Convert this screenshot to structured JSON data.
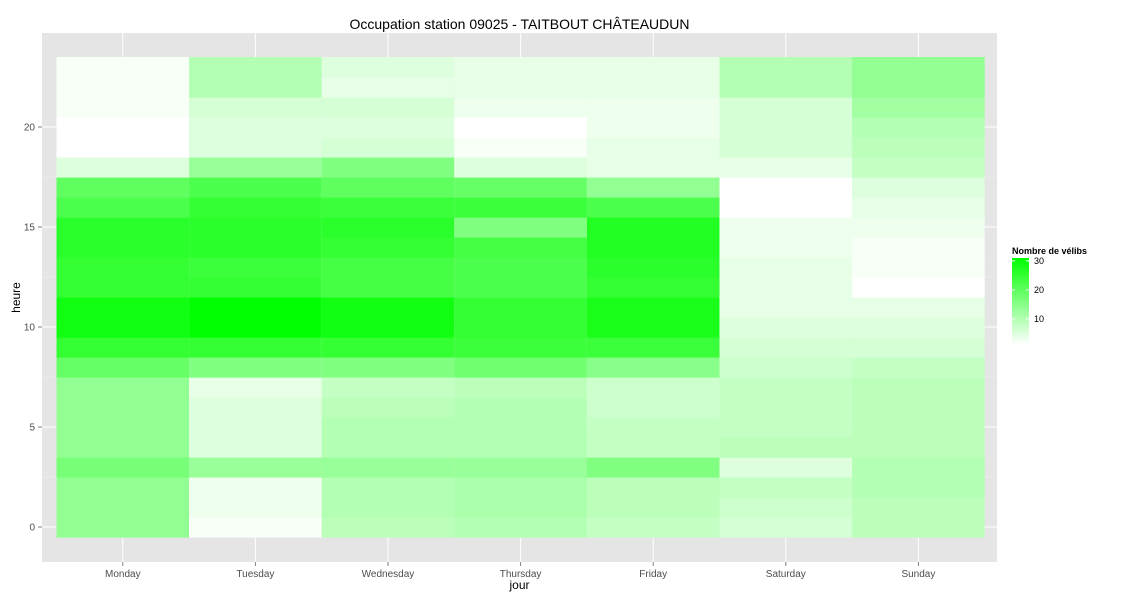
{
  "chart_data": {
    "type": "heatmap",
    "title": "Occupation station 09025 - TAITBOUT CHÂTEAUDUN",
    "xlabel": "jour",
    "ylabel": "heure",
    "categories": [
      "Monday",
      "Tuesday",
      "Wednesday",
      "Thursday",
      "Friday",
      "Saturday",
      "Sunday"
    ],
    "hours": [
      0,
      1,
      2,
      3,
      4,
      5,
      6,
      7,
      8,
      9,
      10,
      11,
      12,
      13,
      14,
      15,
      16,
      17,
      18,
      19,
      20,
      21,
      22,
      23
    ],
    "ylim": [
      -0.5,
      23.5
    ],
    "yticks": [
      0,
      5,
      10,
      15,
      20
    ],
    "values": [
      [
        14,
        2,
        9,
        10,
        8,
        6,
        9
      ],
      [
        14,
        3,
        10,
        11,
        9,
        7,
        9
      ],
      [
        14,
        3,
        10,
        11,
        9,
        8,
        10
      ],
      [
        17,
        13,
        13,
        13,
        16,
        5,
        10
      ],
      [
        14,
        5,
        10,
        10,
        8,
        9,
        9
      ],
      [
        14,
        5,
        10,
        10,
        8,
        8,
        9
      ],
      [
        14,
        5,
        9,
        10,
        7,
        8,
        9
      ],
      [
        14,
        4,
        8,
        9,
        7,
        8,
        9
      ],
      [
        19,
        16,
        16,
        18,
        15,
        7,
        8
      ],
      [
        25,
        25,
        25,
        24,
        24,
        6,
        6
      ],
      [
        29,
        31,
        29,
        25,
        28,
        5,
        5
      ],
      [
        29,
        31,
        29,
        25,
        28,
        4,
        4
      ],
      [
        25,
        25,
        23,
        22,
        25,
        4,
        1
      ],
      [
        25,
        24,
        23,
        22,
        26,
        4,
        2
      ],
      [
        26,
        26,
        25,
        23,
        27,
        3,
        2
      ],
      [
        26,
        26,
        26,
        16,
        27,
        3,
        3
      ],
      [
        22,
        25,
        24,
        24,
        22,
        1,
        4
      ],
      [
        20,
        22,
        20,
        19,
        14,
        1,
        5
      ],
      [
        5,
        13,
        16,
        5,
        4,
        4,
        8
      ],
      [
        0,
        5,
        6,
        2,
        4,
        6,
        9
      ],
      [
        0,
        5,
        5,
        1,
        3,
        6,
        10
      ],
      [
        2,
        6,
        6,
        3,
        3,
        6,
        12
      ],
      [
        2,
        10,
        4,
        4,
        4,
        10,
        14
      ],
      [
        2,
        10,
        5,
        4,
        4,
        10,
        14
      ]
    ],
    "colorscale": {
      "low": "#ffffff",
      "high": "#00ff00",
      "min": 1,
      "max": 31
    },
    "legend": {
      "title": "Nombre de vélibs",
      "breaks": [
        30,
        20,
        10
      ],
      "position": "right"
    },
    "grid": true,
    "panel_background": "#e5e5e5"
  }
}
